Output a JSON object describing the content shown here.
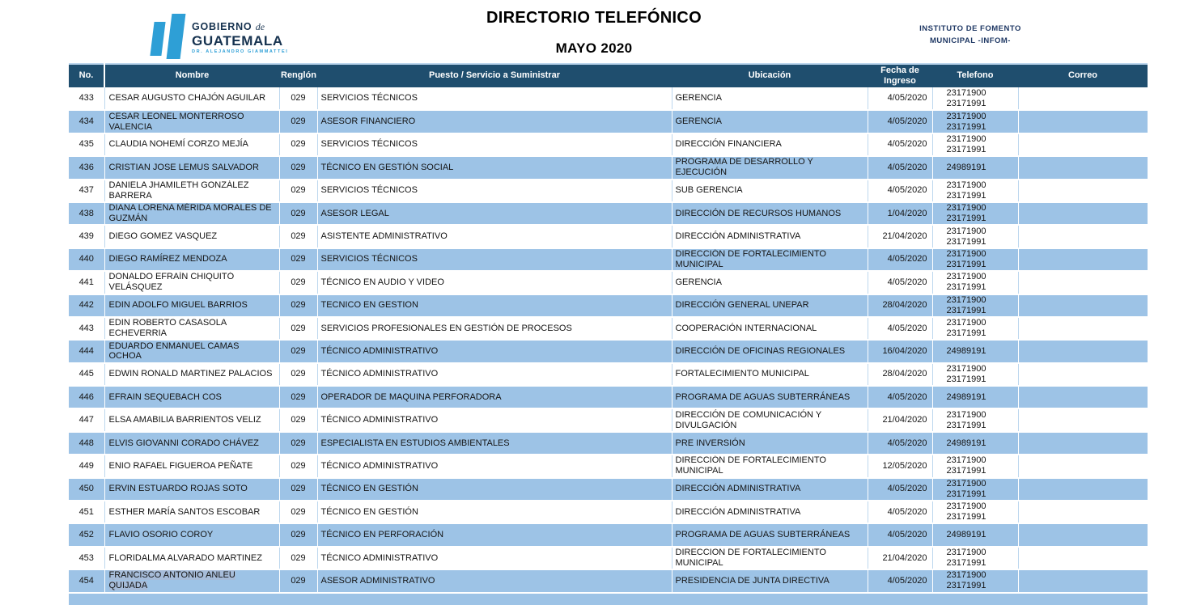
{
  "header": {
    "title": "DIRECTORIO TELEFÓNICO",
    "subtitle": "MAYO 2020",
    "org_line1": "INSTITUTO DE FOMENTO",
    "org_line2": "MUNICIPAL -INFOM-",
    "logo": {
      "line1": "GOBIERNO",
      "de": "de",
      "line2": "GUATEMALA",
      "line3": "DR. ALEJANDRO GIAMMATTEI"
    }
  },
  "colors": {
    "header_bar": "#1F4E6E",
    "row_stripe_blue": "#9DC3E6",
    "grid_light_blue": "#BDD7EE",
    "text_selection": "#A6BCD9",
    "logo_blue": "#2E9FD6",
    "org_navy": "#1F3864"
  },
  "table": {
    "columns": [
      "No.",
      "Nombre",
      "Renglón",
      "Puesto / Servicio a Suministrar",
      "Ubicación",
      "Fecha de Ingreso",
      "Telefono",
      "Correo"
    ],
    "rows": [
      {
        "no": "433",
        "nombre": "CESAR AUGUSTO CHAJÓN AGUILAR",
        "renglon": "029",
        "puesto": "SERVICIOS TÉCNICOS",
        "ubicacion": "GERENCIA",
        "fecha": "4/05/2020",
        "telefonos": [
          "23171900",
          "23171991"
        ],
        "correo": ""
      },
      {
        "no": "434",
        "nombre": "CESAR LEONEL MONTERROSO VALENCIA",
        "renglon": "029",
        "puesto": "ASESOR FINANCIERO",
        "ubicacion": "GERENCIA",
        "fecha": "4/05/2020",
        "telefonos": [
          "23171900",
          "23171991"
        ],
        "correo": ""
      },
      {
        "no": "435",
        "nombre": "CLAUDIA NOHEMÍ CORZO MEJÍA",
        "renglon": "029",
        "puesto": "SERVICIOS TÉCNICOS",
        "ubicacion": "DIRECCIÓN FINANCIERA",
        "fecha": "4/05/2020",
        "telefonos": [
          "23171900",
          "23171991"
        ],
        "correo": ""
      },
      {
        "no": "436",
        "nombre": "CRISTIAN JOSE LEMUS SALVADOR",
        "renglon": "029",
        "puesto": "TÉCNICO EN GESTIÓN SOCIAL",
        "ubicacion": "PROGRAMA DE DESARROLLO Y EJECUCIÓN",
        "fecha": "4/05/2020",
        "telefonos": [
          "24989191"
        ],
        "correo": ""
      },
      {
        "no": "437",
        "nombre": "DANIELA JHAMILETH GONZÁLEZ BARRERA",
        "renglon": "029",
        "puesto": "SERVICIOS TÉCNICOS",
        "ubicacion": "SUB GERENCIA",
        "fecha": "4/05/2020",
        "telefonos": [
          "23171900",
          "23171991"
        ],
        "correo": ""
      },
      {
        "no": "438",
        "nombre": "DIANA LORENA MÉRIDA MORALES DE GUZMÁN",
        "renglon": "029",
        "puesto": "ASESOR LEGAL",
        "ubicacion": "DIRECCIÓN DE RECURSOS HUMANOS",
        "fecha": "1/04/2020",
        "telefonos": [
          "23171900",
          "23171991"
        ],
        "correo": ""
      },
      {
        "no": "439",
        "nombre": "DIEGO GOMEZ VASQUEZ",
        "renglon": "029",
        "puesto": "ASISTENTE ADMINISTRATIVO",
        "ubicacion": "DIRECCIÓN ADMINISTRATIVA",
        "fecha": "21/04/2020",
        "telefonos": [
          "23171900",
          "23171991"
        ],
        "correo": ""
      },
      {
        "no": "440",
        "nombre": "DIEGO RAMÍREZ MENDOZA",
        "renglon": "029",
        "puesto": "SERVICIOS TÉCNICOS",
        "ubicacion": "DIRECCIÓN DE FORTALECIMIENTO MUNICIPAL",
        "fecha": "4/05/2020",
        "telefonos": [
          "23171900",
          "23171991"
        ],
        "correo": ""
      },
      {
        "no": "441",
        "nombre": "DONALDO EFRAÍN CHIQUITÓ VELÁSQUEZ",
        "renglon": "029",
        "puesto": "TÉCNICO EN AUDIO Y VIDEO",
        "ubicacion": "GERENCIA",
        "fecha": "4/05/2020",
        "telefonos": [
          "23171900",
          "23171991"
        ],
        "correo": ""
      },
      {
        "no": "442",
        "nombre": "EDIN ADOLFO MIGUEL BARRIOS",
        "renglon": "029",
        "puesto": "TECNICO EN GESTION",
        "ubicacion": "DIRECCIÓN GENERAL UNEPAR",
        "fecha": "28/04/2020",
        "telefonos": [
          "23171900",
          "23171991"
        ],
        "correo": ""
      },
      {
        "no": "443",
        "nombre": "EDIN ROBERTO CASASOLA ECHEVERRIA",
        "renglon": "029",
        "puesto": "SERVICIOS PROFESIONALES EN GESTIÓN DE PROCESOS",
        "ubicacion": "COOPERACIÓN INTERNACIONAL",
        "fecha": "4/05/2020",
        "telefonos": [
          "23171900",
          "23171991"
        ],
        "correo": ""
      },
      {
        "no": "444",
        "nombre": "EDUARDO ENMANUEL CAMAS OCHOA",
        "renglon": "029",
        "puesto": "TÉCNICO ADMINISTRATIVO",
        "ubicacion": "DIRECCIÓN DE OFICINAS REGIONALES",
        "fecha": "16/04/2020",
        "telefonos": [
          "24989191"
        ],
        "correo": ""
      },
      {
        "no": "445",
        "nombre": "EDWIN RONALD MARTINEZ PALACIOS",
        "renglon": "029",
        "puesto": "TÉCNICO ADMINISTRATIVO",
        "ubicacion": "FORTALECIMIENTO MUNICIPAL",
        "fecha": "28/04/2020",
        "telefonos": [
          "23171900",
          "23171991"
        ],
        "correo": ""
      },
      {
        "no": "446",
        "nombre": "EFRAIN SEQUEBACH COS",
        "renglon": "029",
        "puesto": "OPERADOR DE MAQUINA PERFORADORA",
        "ubicacion": "PROGRAMA DE AGUAS SUBTERRÁNEAS",
        "fecha": "4/05/2020",
        "telefonos": [
          "24989191"
        ],
        "correo": ""
      },
      {
        "no": "447",
        "nombre": "ELSA AMABILIA BARRIENTOS VELIZ",
        "renglon": "029",
        "puesto": "TÉCNICO ADMINISTRATIVO",
        "ubicacion": "DIRECCIÓN DE COMUNICACIÓN Y DIVULGACIÓN",
        "fecha": "21/04/2020",
        "telefonos": [
          "23171900",
          "23171991"
        ],
        "correo": ""
      },
      {
        "no": "448",
        "nombre": "ELVIS GIOVANNI CORADO CHÁVEZ",
        "renglon": "029",
        "puesto": "ESPECIALISTA EN ESTUDIOS AMBIENTALES",
        "ubicacion": "PRE INVERSIÓN",
        "fecha": "4/05/2020",
        "telefonos": [
          "24989191"
        ],
        "correo": ""
      },
      {
        "no": "449",
        "nombre": "ENIO RAFAEL FIGUEROA PEÑATE",
        "renglon": "029",
        "puesto": "TÉCNICO ADMINISTRATIVO",
        "ubicacion": "DIRECCIÓN DE FORTALECIMIENTO MUNICIPAL",
        "fecha": "12/05/2020",
        "telefonos": [
          "23171900",
          "23171991"
        ],
        "correo": ""
      },
      {
        "no": "450",
        "nombre": "ERVIN ESTUARDO ROJAS SOTO",
        "renglon": "029",
        "puesto": "TÉCNICO EN GESTIÓN",
        "ubicacion": "DIRECCIÓN ADMINISTRATIVA",
        "fecha": "4/05/2020",
        "telefonos": [
          "23171900",
          "23171991"
        ],
        "correo": ""
      },
      {
        "no": "451",
        "nombre": "ESTHER MARÍA SANTOS ESCOBAR",
        "renglon": "029",
        "puesto": "TÉCNICO EN GESTIÓN",
        "ubicacion": "DIRECCIÓN ADMINISTRATIVA",
        "fecha": "4/05/2020",
        "telefonos": [
          "23171900",
          "23171991"
        ],
        "correo": ""
      },
      {
        "no": "452",
        "nombre": "FLAVIO OSORIO COROY",
        "renglon": "029",
        "puesto": "TÉCNICO EN PERFORACIÓN",
        "ubicacion": "PROGRAMA DE AGUAS SUBTERRÁNEAS",
        "fecha": "4/05/2020",
        "telefonos": [
          "24989191"
        ],
        "correo": ""
      },
      {
        "no": "453",
        "nombre": "FLORIDALMA ALVARADO MARTINEZ",
        "renglon": "029",
        "puesto": "TÉCNICO ADMINISTRATIVO",
        "ubicacion": "DIRECCION DE FORTALECIMIENTO MUNICIPAL",
        "fecha": "21/04/2020",
        "telefonos": [
          "23171900",
          "23171991"
        ],
        "correo": ""
      },
      {
        "no": "454",
        "nombre": "FRANCISCO ANTONIO ANLEU QUIJADA",
        "renglon": "029",
        "puesto": "ASESOR ADMINISTRATIVO",
        "ubicacion": "PRESIDENCIA DE JUNTA DIRECTIVA",
        "fecha": "4/05/2020",
        "telefonos": [
          "23171900",
          "23171991"
        ],
        "correo": "",
        "name_selected": true
      }
    ]
  }
}
